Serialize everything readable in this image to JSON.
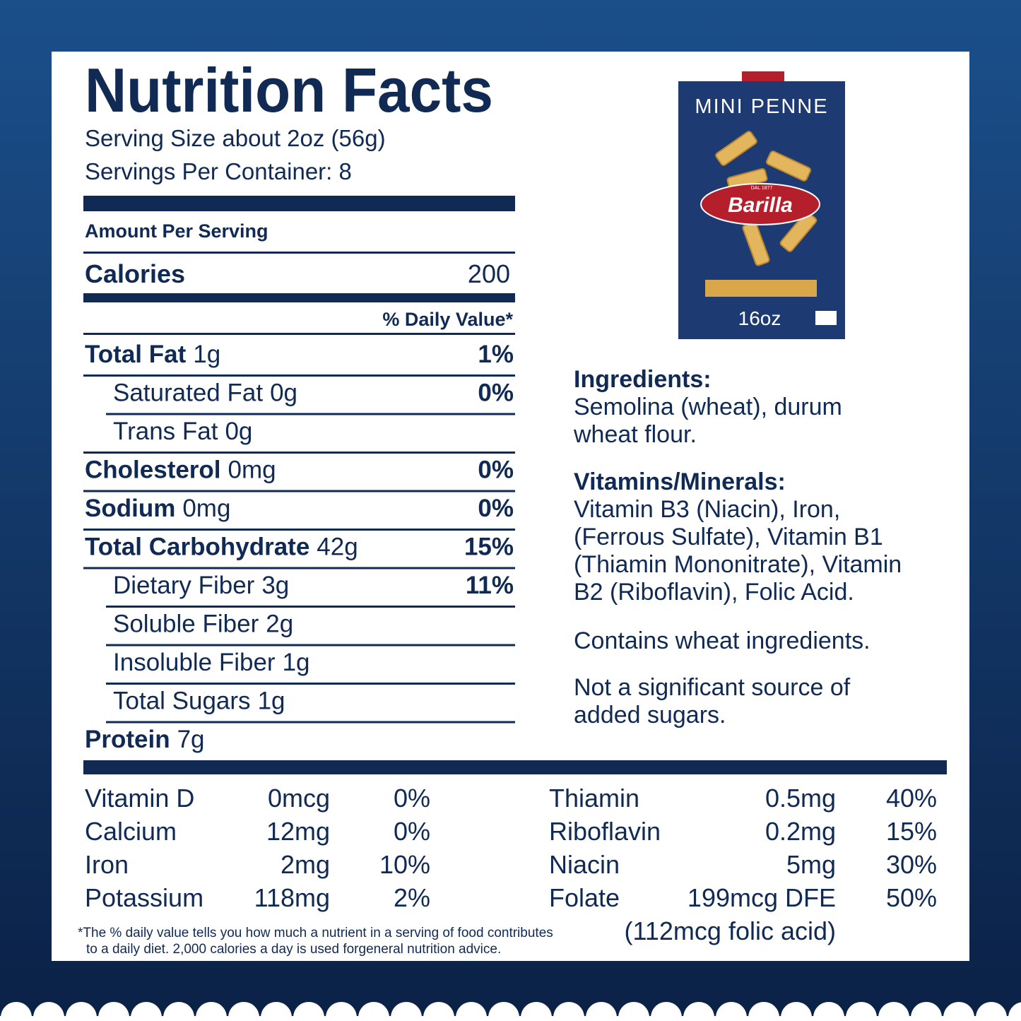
{
  "header": {
    "title": "Nutrition Facts",
    "serving_size": "Serving Size about 2oz (56g)",
    "servings_per_container": "Servings Per Container: 8"
  },
  "amount_per_serving": "Amount Per Serving",
  "calories": {
    "label": "Calories",
    "value": "200"
  },
  "daily_value_header": "% Daily Value*",
  "rows": [
    {
      "name": "Total Fat",
      "amount": "1g",
      "dv": "1%"
    },
    {
      "name": "Saturated Fat",
      "amount": "0g",
      "dv": "0%"
    },
    {
      "name": "Trans Fat",
      "amount": "0g"
    },
    {
      "name": "Cholesterol",
      "amount": "0mg",
      "dv": "0%"
    },
    {
      "name": "Sodium",
      "amount": "0mg",
      "dv": "0%"
    },
    {
      "name": "Total Carbohydrate",
      "amount": "42g",
      "dv": "15%"
    },
    {
      "name": "Dietary Fiber",
      "amount": "3g",
      "dv": "11%"
    },
    {
      "name": "Soluble Fiber",
      "amount": "2g"
    },
    {
      "name": "Insoluble Fiber",
      "amount": "1g"
    },
    {
      "name": "Total Sugars",
      "amount": "1g"
    },
    {
      "name": "Protein",
      "amount": "7g"
    }
  ],
  "micronutrients_left": [
    {
      "name": "Vitamin D",
      "amount": "0mcg",
      "dv": "0%"
    },
    {
      "name": "Calcium",
      "amount": "12mg",
      "dv": "0%"
    },
    {
      "name": "Iron",
      "amount": "2mg",
      "dv": "10%"
    },
    {
      "name": "Potassium",
      "amount": "118mg",
      "dv": "2%"
    }
  ],
  "micronutrients_right": [
    {
      "name": "Thiamin",
      "amount": "0.5mg",
      "dv": "40%"
    },
    {
      "name": "Riboflavin",
      "amount": "0.2mg",
      "dv": "15%"
    },
    {
      "name": "Niacin",
      "amount": "5mg",
      "dv": "30%"
    },
    {
      "name": "Folate",
      "amount": "199mcg DFE",
      "dv": "50%"
    }
  ],
  "folate_note": "(112mcg folic acid)",
  "footnote": [
    "*The % daily value tells you how much a nutrient in a serving of food contributes",
    "to a daily diet. 2,000 calories a day is used forgeneral nutrition advice."
  ],
  "package": {
    "name": "MINI PENNE",
    "since": "DAL 1877",
    "brand": "Barilla",
    "weight": "16oz"
  },
  "ingredients": {
    "heading": "Ingredients:",
    "lines": [
      "Semolina (wheat), durum",
      "wheat flour."
    ]
  },
  "vitamins_minerals": {
    "heading": "Vitamins/Minerals:",
    "lines": [
      "Vitamin B3 (Niacin), Iron,",
      "(Ferrous Sulfate), Vitamin B1",
      "(Thiamin Mononitrate), Vitamin",
      "B2 (Riboflavin), Folic Acid."
    ]
  },
  "allergen": "Contains wheat ingredients.",
  "sugar_note": [
    "Not a significant source of",
    "added sugars."
  ]
}
